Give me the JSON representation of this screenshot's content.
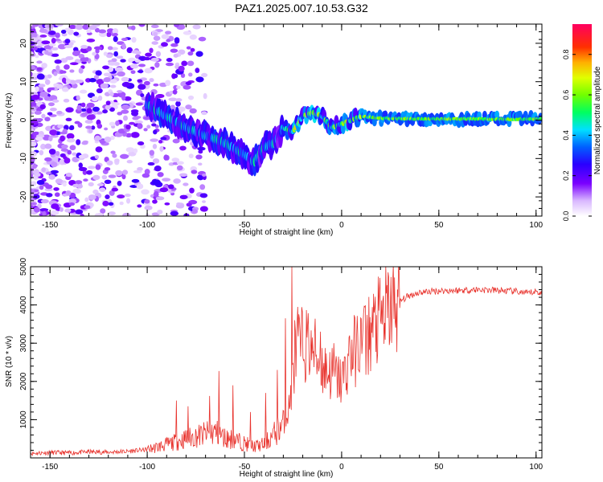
{
  "title": "PAZ1.2025.007.10.53.G32",
  "colors": {
    "snr_line": "#e8322c",
    "axes": "#000000",
    "background": "#ffffff"
  },
  "chart_data": [
    {
      "type": "heatmap",
      "name": "spectrogram",
      "xlabel": "Height of straight line (km)",
      "ylabel": "Frequency (Hz)",
      "xlim": [
        -160,
        103
      ],
      "ylim": [
        -25,
        25
      ],
      "xticks": [
        -150,
        -100,
        -50,
        0,
        50,
        100
      ],
      "yticks": [
        -20,
        -10,
        0,
        10,
        20
      ],
      "xtick_labels": [
        "-150",
        "-100",
        "-50",
        "0",
        "50",
        "100"
      ],
      "ytick_labels": [
        "-20",
        "-10",
        "0",
        "10",
        "20"
      ],
      "colorbar": {
        "label": "Normalized spectral amplitude",
        "range": [
          0,
          0.95
        ],
        "ticks": [
          0.0,
          0.2,
          0.4,
          0.6,
          0.8
        ],
        "tick_labels": [
          "0.0",
          "0.2",
          "0.4",
          "0.6",
          "0.8"
        ]
      },
      "ridge": {
        "description_free": true,
        "x": [
          -100,
          -90,
          -80,
          -70,
          -60,
          -50,
          -45,
          -40,
          -35,
          -30,
          -25,
          -20,
          -15,
          -10,
          -5,
          0,
          5,
          10,
          20,
          30,
          40,
          50,
          60,
          70,
          80,
          90,
          100
        ],
        "y": [
          4,
          1,
          -2,
          -4,
          -6,
          -9,
          -11,
          -7,
          -6,
          -2,
          -3,
          1,
          2,
          1,
          -2,
          -1,
          0,
          1,
          0.5,
          0.4,
          0.3,
          0.3,
          0.3,
          0.3,
          0.2,
          0.2,
          0.3
        ]
      }
    },
    {
      "type": "line",
      "name": "snr",
      "xlabel": "Height of straight line (km)",
      "ylabel": "SNR (10 * v/v)",
      "xlim": [
        -160,
        103
      ],
      "ylim": [
        0,
        5000
      ],
      "xticks": [
        -150,
        -100,
        -50,
        0,
        50,
        100
      ],
      "yticks": [
        1000,
        2000,
        3000,
        4000,
        5000
      ],
      "xtick_labels": [
        "-150",
        "-100",
        "-50",
        "0",
        "50",
        "100"
      ],
      "ytick_labels": [
        "1000",
        "2000",
        "3000",
        "4000",
        "5000"
      ],
      "series": [
        {
          "name": "SNR",
          "x": [
            -160,
            -150,
            -140,
            -130,
            -120,
            -110,
            -100,
            -95,
            -90,
            -85,
            -80,
            -75,
            -70,
            -65,
            -60,
            -55,
            -50,
            -45,
            -40,
            -35,
            -30,
            -27,
            -25,
            -23,
            -20,
            -15,
            -10,
            -5,
            0,
            5,
            10,
            15,
            20,
            25,
            30,
            35,
            40,
            50,
            60,
            70,
            80,
            90,
            95,
            100,
            103
          ],
          "y": [
            120,
            140,
            130,
            160,
            150,
            170,
            220,
            280,
            350,
            420,
            500,
            560,
            620,
            680,
            520,
            480,
            380,
            300,
            350,
            600,
            900,
            1300,
            2200,
            2800,
            3000,
            2900,
            2400,
            2200,
            2000,
            2700,
            3000,
            3300,
            3600,
            3900,
            4100,
            4250,
            4330,
            4370,
            4380,
            4400,
            4380,
            4350,
            4300,
            4350,
            4300
          ]
        }
      ],
      "spikes": {
        "x": [
          -85,
          -79,
          -68,
          -63,
          -56,
          -47,
          -39,
          -33,
          -29,
          -25.5,
          -24,
          -22.5,
          -15,
          -11,
          -4,
          4,
          12
        ],
        "y": [
          1500,
          1350,
          1620,
          2270,
          1900,
          1200,
          1700,
          2300,
          3650,
          5000,
          3600,
          3950,
          3150,
          3300,
          3000,
          3200,
          3950
        ]
      }
    }
  ]
}
